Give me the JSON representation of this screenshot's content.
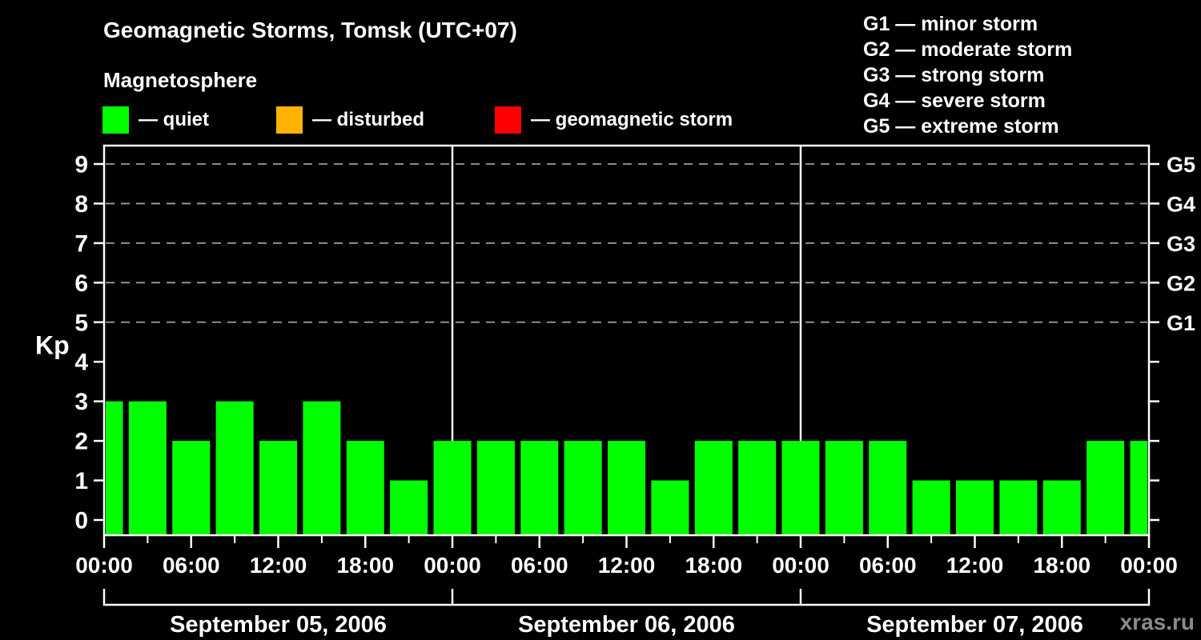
{
  "page": {
    "title": "Geomagnetic Storms, Tomsk (UTC+07)",
    "subtitle": "Magnetosphere",
    "watermark": "xras.ru"
  },
  "legend": {
    "items": [
      {
        "name": "quiet",
        "label": "— quiet",
        "color": "#00ff00"
      },
      {
        "name": "disturbed",
        "label": "— disturbed",
        "color": "#ffb300"
      },
      {
        "name": "storm",
        "label": "— geomagnetic storm",
        "color": "#ff0000"
      }
    ]
  },
  "storm_scale": {
    "lines": [
      "G1 — minor storm",
      "G2 — moderate storm",
      "G3 — strong storm",
      "G4 — severe storm",
      "G5 — extreme storm"
    ]
  },
  "chart_data": {
    "type": "bar",
    "title": "Geomagnetic Storms, Tomsk (UTC+07)",
    "ylabel": "Kp",
    "ylim": [
      0,
      9
    ],
    "y_ticks": [
      0,
      1,
      2,
      3,
      4,
      5,
      6,
      7,
      8,
      9
    ],
    "grid_levels": [
      5,
      6,
      7,
      8,
      9
    ],
    "grid_style": "dashed",
    "legend_position": "top",
    "right_axis_labels": [
      {
        "kp": 9,
        "label": "G5"
      },
      {
        "kp": 8,
        "label": "G4"
      },
      {
        "kp": 7,
        "label": "G3"
      },
      {
        "kp": 6,
        "label": "G2"
      },
      {
        "kp": 5,
        "label": "G1"
      }
    ],
    "x_major_tick_labels": [
      "00:00",
      "06:00",
      "12:00",
      "18:00",
      "00:00",
      "06:00",
      "12:00",
      "18:00",
      "00:00",
      "06:00",
      "12:00",
      "18:00",
      "00:00"
    ],
    "measurement_interval_hours": 3,
    "days": [
      {
        "date": "September 05, 2006",
        "values": [
          3,
          3,
          2,
          3,
          2,
          3,
          2,
          1
        ]
      },
      {
        "date": "September 06, 2006",
        "values": [
          2,
          2,
          2,
          2,
          2,
          1,
          2,
          2
        ]
      },
      {
        "date": "September 07, 2006",
        "values": [
          2,
          2,
          2,
          1,
          1,
          1,
          1,
          2
        ]
      }
    ],
    "trailing_value": 2,
    "thresholds": {
      "quiet_max": 3,
      "disturbed_max": 4
    },
    "series_colors": {
      "quiet": "#00ff00",
      "disturbed": "#ffb300",
      "storm": "#ff0000"
    },
    "axis_color": "#ffffff",
    "grid_color": "#9e9e9e",
    "background_color": "#000000"
  }
}
